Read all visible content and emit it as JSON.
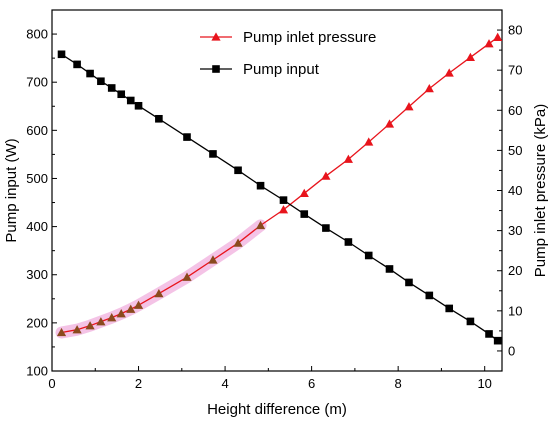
{
  "chart_data": {
    "type": "line",
    "title": "",
    "xlabel": "Height difference (m)",
    "ylabel_left": "Pump input (W)",
    "ylabel_right": "Pump inlet pressure (kPa)",
    "xlim": [
      0,
      10.4
    ],
    "ylim_left": [
      100,
      850
    ],
    "ylim_right": [
      -5,
      85
    ],
    "x_ticks": [
      "0",
      "2",
      "4",
      "6",
      "8",
      "10"
    ],
    "y_left_ticks": [
      "100",
      "200",
      "300",
      "400",
      "500",
      "600",
      "700",
      "800"
    ],
    "y_right_ticks": [
      "0",
      "10",
      "20",
      "30",
      "40",
      "50",
      "60",
      "70",
      "80"
    ],
    "grid": false,
    "legend": {
      "position": "top-right"
    },
    "series": [
      {
        "name": "Pump inlet pressure",
        "axis": "right",
        "marker": "triangle",
        "color": "#e8141c",
        "highlight_color": "#f2b8e2",
        "highlight_upto_x": 5.0,
        "x": [
          0.22,
          0.58,
          0.88,
          1.13,
          1.38,
          1.6,
          1.82,
          2.0,
          2.47,
          3.12,
          3.72,
          4.3,
          4.82,
          5.35,
          5.83,
          6.33,
          6.85,
          7.32,
          7.8,
          8.25,
          8.72,
          9.18,
          9.67,
          10.1,
          10.3
        ],
        "values": [
          4.6,
          5.3,
          6.3,
          7.3,
          8.3,
          9.3,
          10.4,
          11.4,
          14.3,
          18.4,
          22.7,
          26.9,
          31.3,
          35.2,
          39.3,
          43.6,
          47.8,
          52.1,
          56.6,
          60.9,
          65.4,
          69.3,
          73.2,
          76.6,
          78.2
        ]
      },
      {
        "name": "Pump input",
        "axis": "left",
        "marker": "square",
        "color": "#000000",
        "x": [
          0.22,
          0.58,
          0.88,
          1.13,
          1.38,
          1.6,
          1.82,
          2.0,
          2.47,
          3.12,
          3.72,
          4.3,
          4.82,
          5.35,
          5.83,
          6.33,
          6.85,
          7.32,
          7.8,
          8.25,
          8.72,
          9.18,
          9.67,
          10.1,
          10.3
        ],
        "values": [
          758,
          737,
          718,
          702,
          688,
          675,
          662,
          651,
          624,
          586,
          551,
          517,
          485,
          455,
          426,
          397,
          368,
          340,
          312,
          284,
          257,
          230,
          203,
          177,
          163
        ]
      }
    ]
  }
}
